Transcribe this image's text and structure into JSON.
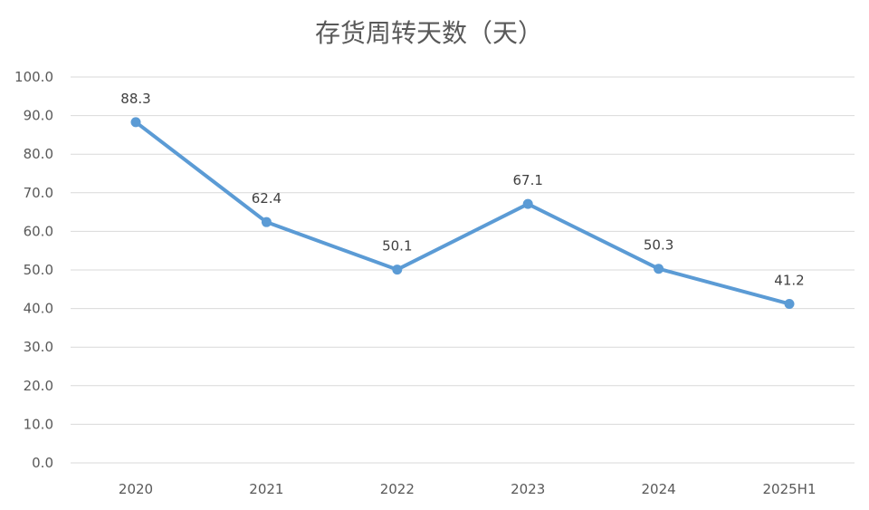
{
  "chart_data": {
    "type": "line",
    "title": "存货周转天数（天）",
    "xlabel": "",
    "ylabel": "",
    "categories": [
      "2020",
      "2021",
      "2022",
      "2023",
      "2024",
      "2025H1"
    ],
    "series": [
      {
        "values": [
          88.3,
          62.4,
          50.1,
          67.1,
          50.3,
          41.2
        ],
        "color": "#5b9bd5"
      }
    ],
    "ylim": [
      0,
      100
    ],
    "yticks": [
      0,
      10,
      20,
      30,
      40,
      50,
      60,
      70,
      80,
      90,
      100
    ],
    "ytick_labels": [
      "0.0",
      "10.0",
      "20.0",
      "30.0",
      "40.0",
      "50.0",
      "60.0",
      "70.0",
      "80.0",
      "90.0",
      "100.0"
    ],
    "data_labels": [
      "88.3",
      "62.4",
      "50.1",
      "67.1",
      "50.3",
      "41.2"
    ],
    "grid": true,
    "legend": "none"
  }
}
